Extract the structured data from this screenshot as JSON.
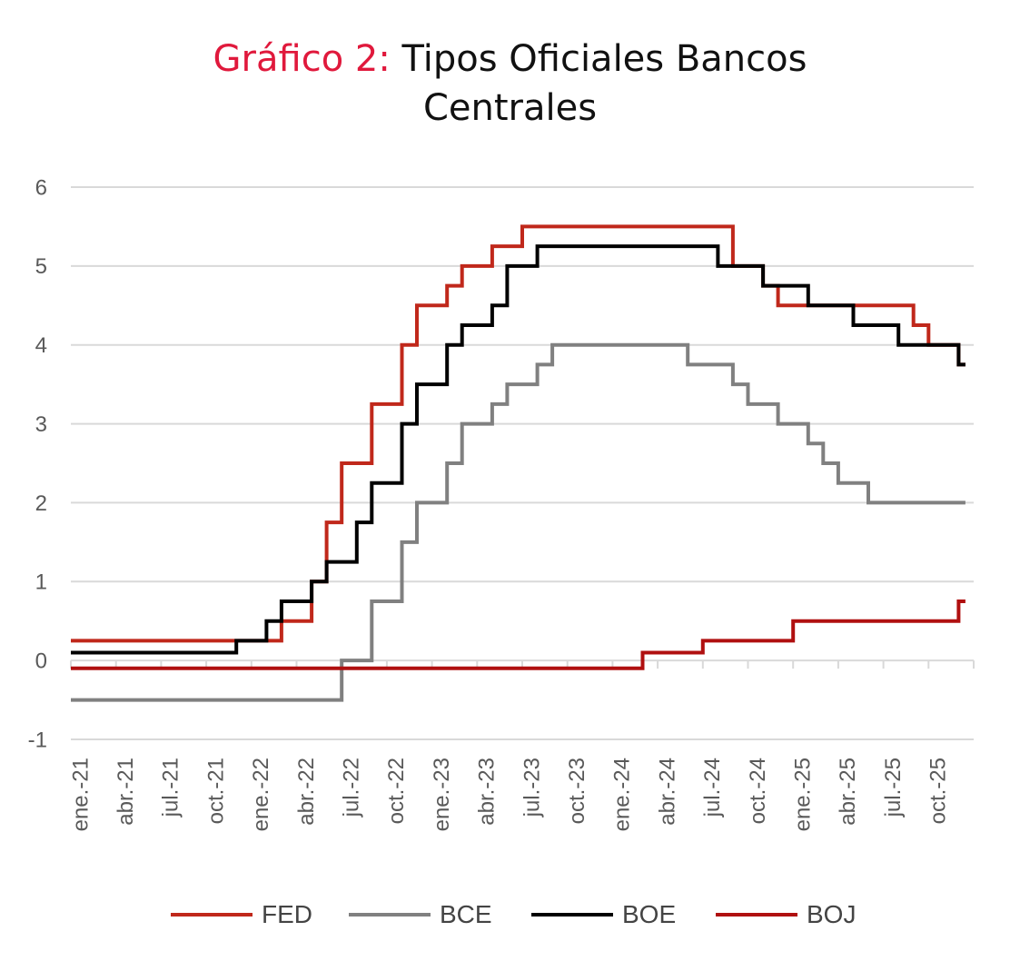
{
  "title": {
    "prefix": "Gráfico 2:",
    "line1": "Tipos Oficiales Bancos",
    "line2": "Centrales"
  },
  "chart_data": {
    "type": "line",
    "title": "Gráfico 2: Tipos Oficiales Bancos Centrales",
    "xlabel": "",
    "ylabel": "",
    "ylim": [
      -1,
      6
    ],
    "yticks": [
      "-1",
      "0",
      "1",
      "2",
      "3",
      "4",
      "5",
      "6"
    ],
    "xlim": [
      "2021-01",
      "2026-01"
    ],
    "x_tick_labels": [
      "ene.-21",
      "abr.-21",
      "jul.-21",
      "oct.-21",
      "ene.-22",
      "abr.-22",
      "jul.-22",
      "oct.-22",
      "ene.-23",
      "abr.-23",
      "jul.-23",
      "oct.-23",
      "ene.-24",
      "abr.-24",
      "jul.-24",
      "oct.-24",
      "ene.-25",
      "abr.-25",
      "jul.-25",
      "oct.-25"
    ],
    "grid": true,
    "legend_position": "bottom",
    "step": true,
    "series": [
      {
        "name": "FED",
        "color": "#c0281b",
        "points": [
          [
            "2021-01",
            0.25
          ],
          [
            "2022-03",
            0.5
          ],
          [
            "2022-05",
            1.0
          ],
          [
            "2022-06",
            1.75
          ],
          [
            "2022-07",
            2.5
          ],
          [
            "2022-09",
            3.25
          ],
          [
            "2022-11",
            4.0
          ],
          [
            "2022-12",
            4.5
          ],
          [
            "2023-02",
            4.75
          ],
          [
            "2023-03",
            5.0
          ],
          [
            "2023-05",
            5.25
          ],
          [
            "2023-07",
            5.5
          ],
          [
            "2024-09",
            5.0
          ],
          [
            "2024-11",
            4.75
          ],
          [
            "2024-12",
            4.5
          ],
          [
            "2025-09",
            4.25
          ],
          [
            "2025-10",
            4.0
          ],
          [
            "2025-12",
            3.75
          ]
        ]
      },
      {
        "name": "BCE",
        "color": "#808080",
        "points": [
          [
            "2021-01",
            -0.5
          ],
          [
            "2022-07",
            0.0
          ],
          [
            "2022-09",
            0.75
          ],
          [
            "2022-11",
            1.5
          ],
          [
            "2022-12",
            2.0
          ],
          [
            "2023-02",
            2.5
          ],
          [
            "2023-03",
            3.0
          ],
          [
            "2023-05",
            3.25
          ],
          [
            "2023-06",
            3.5
          ],
          [
            "2023-08",
            3.75
          ],
          [
            "2023-09",
            4.0
          ],
          [
            "2024-06",
            3.75
          ],
          [
            "2024-09",
            3.5
          ],
          [
            "2024-10",
            3.25
          ],
          [
            "2024-12",
            3.0
          ],
          [
            "2025-02",
            2.75
          ],
          [
            "2025-03",
            2.5
          ],
          [
            "2025-04",
            2.25
          ],
          [
            "2025-06",
            2.0
          ],
          [
            "2025-12",
            2.0
          ]
        ]
      },
      {
        "name": "BOE",
        "color": "#000000",
        "points": [
          [
            "2021-01",
            0.1
          ],
          [
            "2021-12",
            0.25
          ],
          [
            "2022-02",
            0.5
          ],
          [
            "2022-03",
            0.75
          ],
          [
            "2022-05",
            1.0
          ],
          [
            "2022-06",
            1.25
          ],
          [
            "2022-08",
            1.75
          ],
          [
            "2022-09",
            2.25
          ],
          [
            "2022-11",
            3.0
          ],
          [
            "2022-12",
            3.5
          ],
          [
            "2023-02",
            4.0
          ],
          [
            "2023-03",
            4.25
          ],
          [
            "2023-05",
            4.5
          ],
          [
            "2023-06",
            5.0
          ],
          [
            "2023-08",
            5.25
          ],
          [
            "2024-08",
            5.0
          ],
          [
            "2024-11",
            4.75
          ],
          [
            "2025-02",
            4.5
          ],
          [
            "2025-05",
            4.25
          ],
          [
            "2025-08",
            4.0
          ],
          [
            "2025-12",
            3.75
          ]
        ]
      },
      {
        "name": "BOJ",
        "color": "#b01010",
        "points": [
          [
            "2021-01",
            -0.1
          ],
          [
            "2024-03",
            0.1
          ],
          [
            "2024-07",
            0.25
          ],
          [
            "2025-01",
            0.5
          ],
          [
            "2025-12",
            0.75
          ]
        ]
      }
    ]
  },
  "legend": {
    "items": [
      {
        "label": "FED",
        "color": "#c0281b"
      },
      {
        "label": "BCE",
        "color": "#808080"
      },
      {
        "label": "BOE",
        "color": "#000000"
      },
      {
        "label": "BOJ",
        "color": "#b01010"
      }
    ]
  },
  "colors": {
    "title_accent": "#e0193c",
    "grid": "#d9d9d9",
    "axis_text": "#595959"
  }
}
